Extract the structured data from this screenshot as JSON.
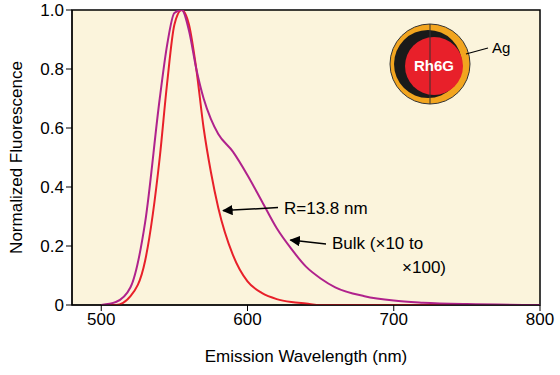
{
  "chart_data": {
    "type": "line",
    "x_label": "Emission Wavelength (nm)",
    "y_label": "Normalized Fluorescence",
    "x": [
      500,
      510,
      520,
      530,
      540,
      545,
      550,
      555,
      560,
      565,
      570,
      575,
      580,
      590,
      600,
      610,
      620,
      630,
      640,
      650,
      660,
      680,
      700,
      720,
      750,
      800
    ],
    "series": [
      {
        "name": "R=13.8 nm",
        "color": "#e8202a",
        "values": [
          0,
          0,
          0.03,
          0.15,
          0.5,
          0.75,
          0.95,
          1.0,
          0.95,
          0.8,
          0.6,
          0.45,
          0.33,
          0.17,
          0.08,
          0.04,
          0.02,
          0.01,
          0.005,
          0,
          0,
          0,
          0,
          0,
          0,
          0
        ]
      },
      {
        "name": "Bulk (×10 to ×100)",
        "color": "#b0228c",
        "values": [
          0,
          0.01,
          0.06,
          0.28,
          0.7,
          0.88,
          0.99,
          1.0,
          0.93,
          0.8,
          0.7,
          0.63,
          0.58,
          0.52,
          0.44,
          0.35,
          0.26,
          0.19,
          0.13,
          0.09,
          0.06,
          0.03,
          0.015,
          0.008,
          0.003,
          0
        ]
      }
    ],
    "xlim": [
      480,
      800
    ],
    "xticks": [
      500,
      600,
      700,
      800
    ],
    "ylim": [
      0,
      1
    ],
    "yticks": [
      0,
      0.2,
      0.4,
      0.6,
      0.8,
      {
        "value": 1,
        "label": "1.0"
      }
    ],
    "grid": false,
    "annotations": [
      "Rh6G",
      "Ag"
    ]
  }
}
